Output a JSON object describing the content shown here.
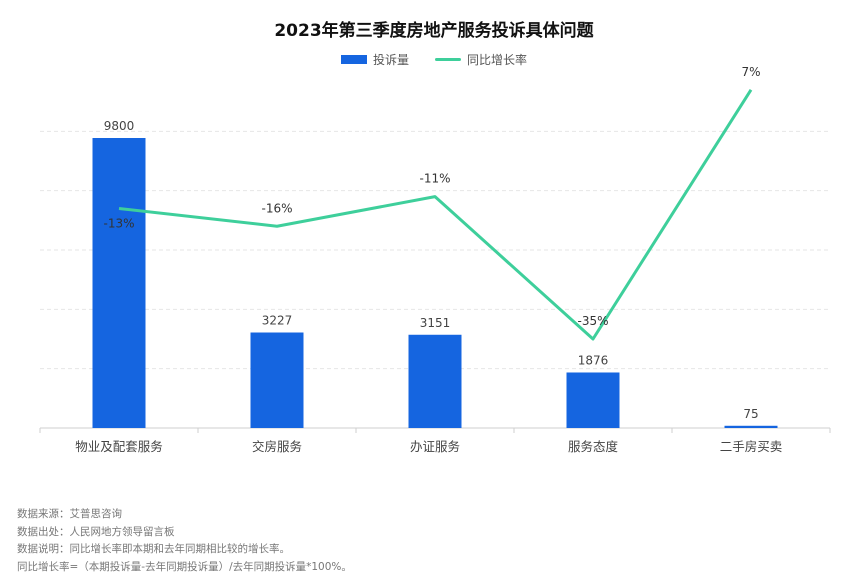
{
  "chart_data": {
    "type": "bar+line",
    "title": "2023年第三季度房地产服务投诉具体问题",
    "categories": [
      "物业及配套服务",
      "交房服务",
      "办证服务",
      "服务态度",
      "二手房买卖"
    ],
    "series": [
      {
        "name": "投诉量",
        "type": "bar",
        "values": [
          9800,
          3227,
          3151,
          1876,
          75
        ],
        "labels": [
          "9800",
          "3227",
          "3151",
          "1876",
          "75"
        ]
      },
      {
        "name": "同比增长率",
        "type": "line",
        "values": [
          -13,
          -16,
          -11,
          -35,
          7
        ],
        "labels": [
          "-13%",
          "-16%",
          "-11%",
          "-35%",
          "7%"
        ]
      }
    ],
    "bar_ylim": [
      0,
      10000
    ],
    "line_ylim": [
      -50,
      10
    ],
    "legend_position": "top-center",
    "grid": "horizontal dashed",
    "colors": {
      "bar": "#1565e0",
      "line": "#3ecf9b"
    }
  },
  "notes": [
    "数据来源：艾普思咨询",
    "数据出处：人民网地方领导留言板",
    "数据说明：同比增长率即本期和去年同期相比较的增长率。",
    "同比增长率=（本期投诉量-去年同期投诉量）/去年同期投诉量*100%。"
  ]
}
